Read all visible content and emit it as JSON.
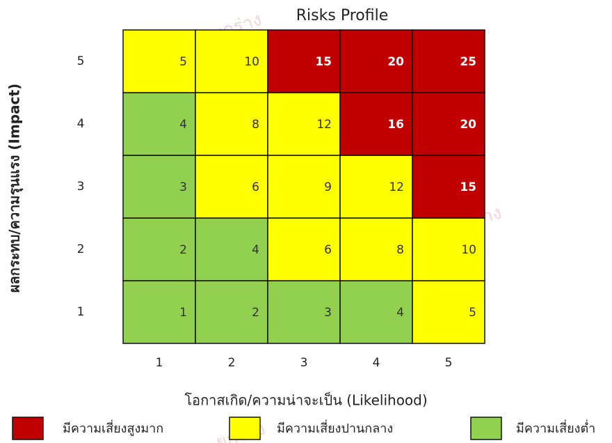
{
  "chart_data": {
    "type": "heatmap",
    "title": "Risks Profile",
    "xlabel": "โอกาสเกิด/ความน่าจะเป็น  (Likelihood)",
    "ylabel": "ผลกระทบ/ความรุนแรง (Impact)",
    "watermark": "ยกร่าง",
    "x": [
      1,
      2,
      3,
      4,
      5
    ],
    "y": [
      1,
      2,
      3,
      4,
      5
    ],
    "values": [
      [
        1,
        2,
        3,
        4,
        5
      ],
      [
        2,
        4,
        6,
        8,
        10
      ],
      [
        3,
        6,
        9,
        12,
        15
      ],
      [
        4,
        8,
        12,
        16,
        20
      ],
      [
        5,
        10,
        15,
        20,
        25
      ]
    ],
    "colors": [
      [
        "#92d050",
        "#92d050",
        "#92d050",
        "#92d050",
        "#ffff00"
      ],
      [
        "#92d050",
        "#92d050",
        "#ffff00",
        "#ffff00",
        "#ffff00"
      ],
      [
        "#92d050",
        "#ffff00",
        "#ffff00",
        "#ffff00",
        "#c00000"
      ],
      [
        "#92d050",
        "#ffff00",
        "#ffff00",
        "#c00000",
        "#c00000"
      ],
      [
        "#ffff00",
        "#ffff00",
        "#c00000",
        "#c00000",
        "#c00000"
      ]
    ],
    "legend": [
      {
        "name": "มีความเสี่ยงสูงมาก",
        "color": "#c00000"
      },
      {
        "name": "มีความเสี่ยงปานกลาง",
        "color": "#ffff00"
      },
      {
        "name": "มีความเสี่ยงต่ำ",
        "color": "#92d050"
      }
    ]
  }
}
